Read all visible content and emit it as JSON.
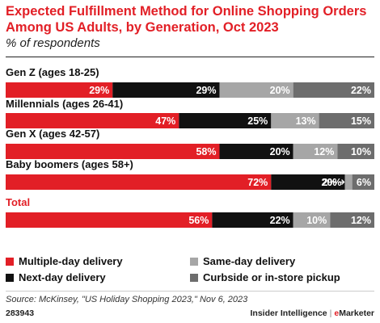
{
  "title": "Expected Fulfillment Method for Online Shopping Orders Among US Adults, by Generation, Oct 2023",
  "subtitle": "% of respondents",
  "chart_data": {
    "type": "bar",
    "orientation": "horizontal",
    "stacked": true,
    "categories": [
      "Gen Z (ages 18-25)",
      "Millennials (ages 26-41)",
      "Gen X (ages 42-57)",
      "Baby boomers (ages 58+)",
      "Total"
    ],
    "series": [
      {
        "name": "Multiple-day delivery",
        "color": "#e21f26",
        "values": [
          29,
          47,
          58,
          72,
          56
        ]
      },
      {
        "name": "Next-day delivery",
        "color": "#111111",
        "values": [
          29,
          25,
          20,
          20,
          22
        ]
      },
      {
        "name": "Same-day delivery",
        "color": "#a6a6a6",
        "values": [
          20,
          13,
          12,
          2,
          10
        ]
      },
      {
        "name": "Curbside or in-store pickup",
        "color": "#6d6d6d",
        "values": [
          22,
          15,
          10,
          6,
          12
        ]
      }
    ],
    "data_labels": [
      [
        "29%",
        "29%",
        "20%",
        "22%"
      ],
      [
        "47%",
        "25%",
        "13%",
        "15%"
      ],
      [
        "58%",
        "20%",
        "12%",
        "10%"
      ],
      [
        "72%",
        "20%",
        "2%",
        "6%"
      ],
      [
        "56%",
        "22%",
        "10%",
        "12%"
      ]
    ],
    "highlight_category": "Total",
    "highlight_color": "#e21f26",
    "xlim": [
      0,
      100
    ],
    "legend_placement": "bottom"
  },
  "source": "Source: McKinsey, \"US Holiday Shopping 2023,\" Nov 6, 2023",
  "footer": {
    "chart_id": "283943",
    "brand": "Insider Intelligence",
    "separator": "|",
    "brand_secondary_e": "e",
    "brand_secondary_rest": "Marketer"
  }
}
